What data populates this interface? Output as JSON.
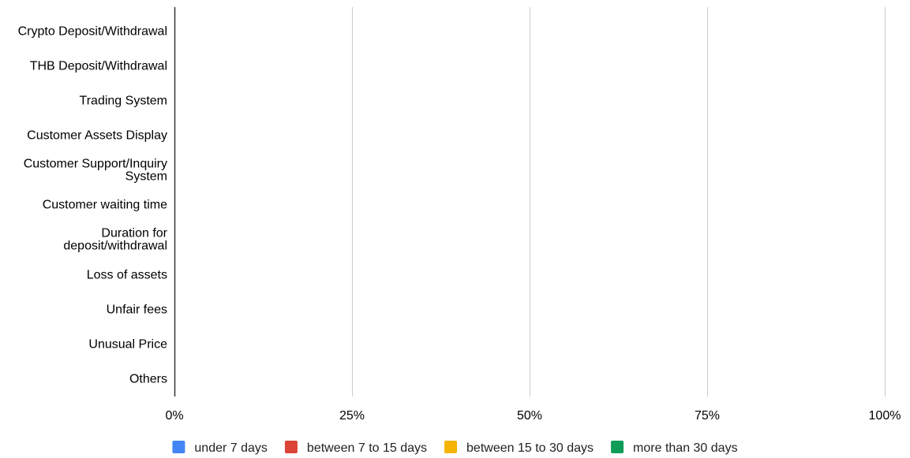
{
  "chart_data": {
    "type": "bar",
    "orientation": "horizontal",
    "stacked": "percent",
    "title": "",
    "xlabel": "",
    "ylabel": "",
    "categories": [
      "Crypto Deposit/Withdrawal",
      "THB Deposit/Withdrawal",
      "Trading System",
      "Customer Assets Display",
      "Customer Support/Inquiry System",
      "Customer waiting time",
      "Duration for deposit/withdrawal",
      "Loss of assets",
      "Unfair fees",
      "Unusual Price",
      "Others"
    ],
    "category_label_lines": [
      [
        "Crypto Deposit/Withdrawal"
      ],
      [
        "THB Deposit/Withdrawal"
      ],
      [
        "Trading System"
      ],
      [
        "Customer Assets Display"
      ],
      [
        "Customer Support/Inquiry",
        "System"
      ],
      [
        "Customer waiting time"
      ],
      [
        "Duration for",
        "deposit/withdrawal"
      ],
      [
        "Loss of assets"
      ],
      [
        "Unfair fees"
      ],
      [
        "Unusual Price"
      ],
      [
        "Others"
      ]
    ],
    "x_ticks": [
      0,
      25,
      50,
      75,
      100
    ],
    "x_tick_labels": [
      "0%",
      "25%",
      "50%",
      "75%",
      "100%"
    ],
    "xlim": [
      0,
      100
    ],
    "grid": "vertical",
    "legend_position": "bottom",
    "series": [
      {
        "name": "under 7 days",
        "color": "#4285f4",
        "values": [
          0,
          0,
          0,
          0,
          0,
          0,
          0,
          0,
          0,
          0,
          0
        ]
      },
      {
        "name": "between 7 to 15 days",
        "color": "#db4437",
        "values": [
          0,
          0,
          0,
          0,
          0,
          0,
          0,
          0,
          0,
          0,
          0
        ]
      },
      {
        "name": "between 15 to 30 days",
        "color": "#f4b400",
        "values": [
          0,
          0,
          0,
          0,
          0,
          0,
          0,
          0,
          0,
          0,
          0
        ]
      },
      {
        "name": "more than 30 days",
        "color": "#0f9d58",
        "values": [
          0,
          0,
          0,
          0,
          0,
          0,
          0,
          0,
          0,
          0,
          0
        ]
      }
    ],
    "colors": {
      "gridline": "#cccccc",
      "axis": "#333333"
    }
  }
}
